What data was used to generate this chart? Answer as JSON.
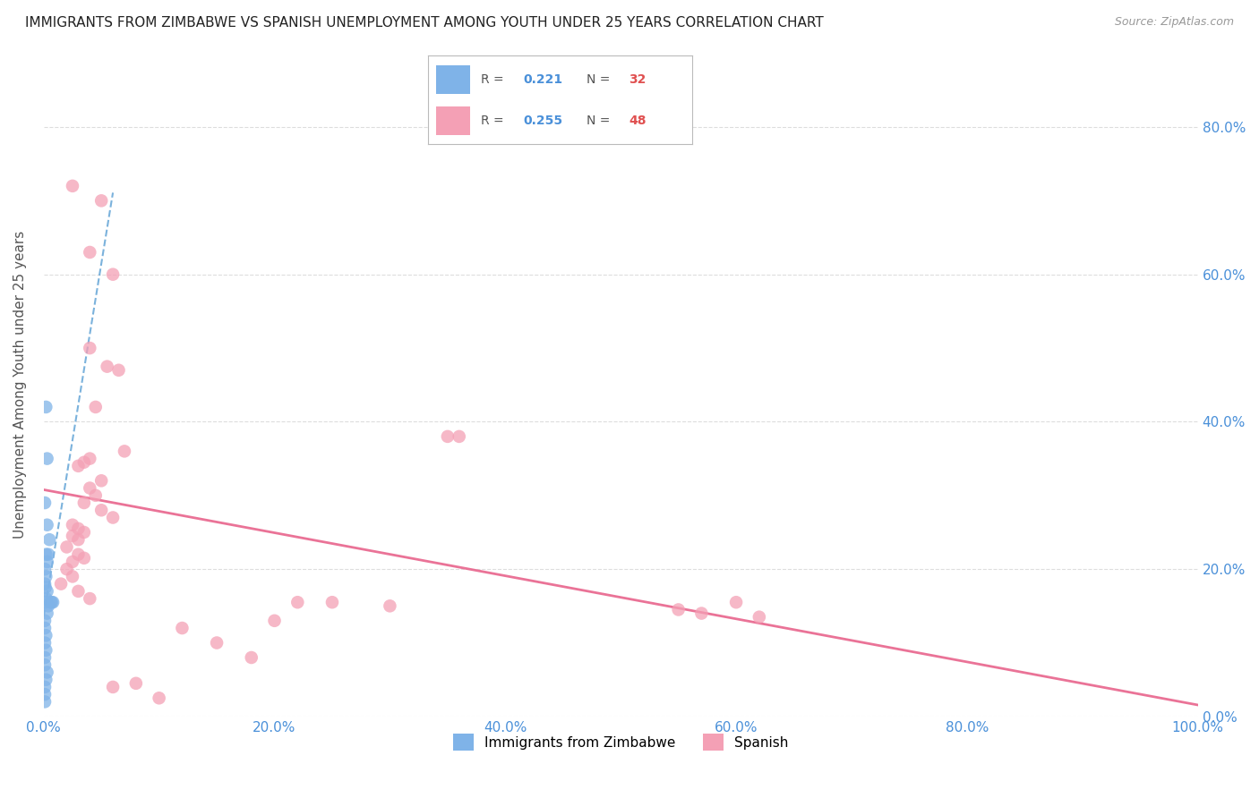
{
  "title": "IMMIGRANTS FROM ZIMBABWE VS SPANISH UNEMPLOYMENT AMONG YOUTH UNDER 25 YEARS CORRELATION CHART",
  "source": "Source: ZipAtlas.com",
  "ylabel": "Unemployment Among Youth under 25 years",
  "legend_label1": "Immigrants from Zimbabwe",
  "legend_label2": "Spanish",
  "R1": 0.221,
  "N1": 32,
  "R2": 0.255,
  "N2": 48,
  "color1": "#7fb3e8",
  "color2": "#f4a0b5",
  "trendline1_color": "#5a9fd4",
  "trendline2_color": "#e8648c",
  "background": "#ffffff",
  "grid_color": "#dddddd",
  "xlim": [
    0.0,
    1.0
  ],
  "ylim": [
    0.0,
    0.9
  ],
  "xticks": [
    0.0,
    0.2,
    0.4,
    0.6,
    0.8,
    1.0
  ],
  "xtick_labels": [
    "0.0%",
    "20.0%",
    "40.0%",
    "60.0%",
    "80.0%",
    "100.0%"
  ],
  "yticks": [
    0.0,
    0.2,
    0.4,
    0.6,
    0.8
  ],
  "ytick_labels": [
    "0.0%",
    "20.0%",
    "40.0%",
    "60.0%",
    "80.0%"
  ],
  "blue_x": [
    0.002,
    0.003,
    0.001,
    0.003,
    0.005,
    0.002,
    0.004,
    0.003,
    0.001,
    0.002,
    0.001,
    0.0015,
    0.003,
    0.002,
    0.001,
    0.007,
    0.006,
    0.008,
    0.004,
    0.003,
    0.001,
    0.001,
    0.002,
    0.001,
    0.002,
    0.001,
    0.001,
    0.003,
    0.002,
    0.001,
    0.001,
    0.001
  ],
  "blue_y": [
    0.42,
    0.35,
    0.29,
    0.26,
    0.24,
    0.22,
    0.22,
    0.21,
    0.2,
    0.19,
    0.18,
    0.175,
    0.17,
    0.16,
    0.155,
    0.155,
    0.155,
    0.155,
    0.15,
    0.14,
    0.13,
    0.12,
    0.11,
    0.1,
    0.09,
    0.08,
    0.07,
    0.06,
    0.05,
    0.04,
    0.03,
    0.02
  ],
  "pink_x": [
    0.025,
    0.05,
    0.04,
    0.06,
    0.04,
    0.055,
    0.065,
    0.045,
    0.07,
    0.04,
    0.035,
    0.03,
    0.05,
    0.04,
    0.045,
    0.035,
    0.05,
    0.06,
    0.025,
    0.03,
    0.035,
    0.025,
    0.03,
    0.02,
    0.03,
    0.035,
    0.025,
    0.02,
    0.025,
    0.015,
    0.03,
    0.04,
    0.35,
    0.36,
    0.22,
    0.55,
    0.57,
    0.25,
    0.3,
    0.6,
    0.62,
    0.12,
    0.15,
    0.2,
    0.18,
    0.08,
    0.1,
    0.06
  ],
  "pink_y": [
    0.72,
    0.7,
    0.63,
    0.6,
    0.5,
    0.475,
    0.47,
    0.42,
    0.36,
    0.35,
    0.345,
    0.34,
    0.32,
    0.31,
    0.3,
    0.29,
    0.28,
    0.27,
    0.26,
    0.255,
    0.25,
    0.245,
    0.24,
    0.23,
    0.22,
    0.215,
    0.21,
    0.2,
    0.19,
    0.18,
    0.17,
    0.16,
    0.38,
    0.38,
    0.155,
    0.145,
    0.14,
    0.155,
    0.15,
    0.155,
    0.135,
    0.12,
    0.1,
    0.13,
    0.08,
    0.045,
    0.025,
    0.04
  ]
}
